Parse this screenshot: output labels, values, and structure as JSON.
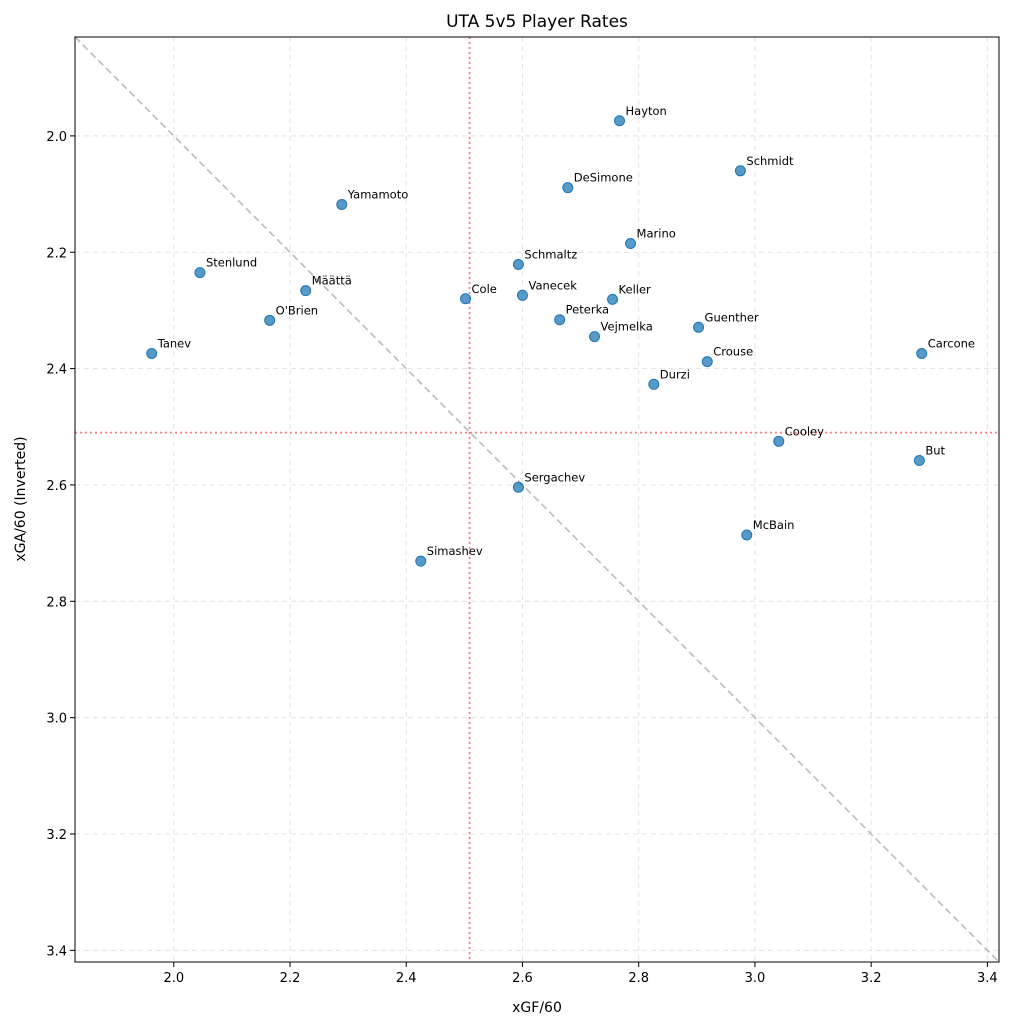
{
  "chart_data": {
    "type": "scatter",
    "title": "UTA 5v5 Player Rates",
    "xlabel": "xGF/60",
    "ylabel": "xGA/60 (Inverted)",
    "xlim": [
      1.83,
      3.42
    ],
    "ylim": [
      3.42,
      1.83
    ],
    "y_inverted": true,
    "grid": true,
    "xticks": [
      "2.0",
      "2.2",
      "2.4",
      "2.6",
      "2.8",
      "3.0",
      "3.2",
      "3.4"
    ],
    "yticks": [
      "2.0",
      "2.2",
      "2.4",
      "2.6",
      "2.8",
      "3.0",
      "3.2",
      "3.4"
    ],
    "point_color": "#1f77b4",
    "reference_lines": {
      "mean_x": 2.509,
      "mean_y": 2.51,
      "mean_color": "#f08080",
      "diagonal": "y = x",
      "diagonal_color": "#bbbbbb"
    },
    "points": [
      {
        "label": "Hayton",
        "x": 2.767,
        "y": 1.974
      },
      {
        "label": "Schmidt",
        "x": 2.975,
        "y": 2.06
      },
      {
        "label": "DeSimone",
        "x": 2.678,
        "y": 2.089
      },
      {
        "label": "Yamamoto",
        "x": 2.289,
        "y": 2.118
      },
      {
        "label": "Marino",
        "x": 2.786,
        "y": 2.185
      },
      {
        "label": "Stenlund",
        "x": 2.045,
        "y": 2.235
      },
      {
        "label": "Schmaltz",
        "x": 2.593,
        "y": 2.221
      },
      {
        "label": "Määttä",
        "x": 2.227,
        "y": 2.266
      },
      {
        "label": "Cole",
        "x": 2.502,
        "y": 2.28
      },
      {
        "label": "Vanecek",
        "x": 2.6,
        "y": 2.274
      },
      {
        "label": "Keller",
        "x": 2.755,
        "y": 2.281
      },
      {
        "label": "O'Brien",
        "x": 2.165,
        "y": 2.317
      },
      {
        "label": "Peterka",
        "x": 2.664,
        "y": 2.316
      },
      {
        "label": "Guenther",
        "x": 2.903,
        "y": 2.329
      },
      {
        "label": "Vejmelka",
        "x": 2.724,
        "y": 2.345
      },
      {
        "label": "Tanev",
        "x": 1.962,
        "y": 2.374
      },
      {
        "label": "Carcone",
        "x": 3.287,
        "y": 2.374
      },
      {
        "label": "Crouse",
        "x": 2.918,
        "y": 2.388
      },
      {
        "label": "Durzi",
        "x": 2.826,
        "y": 2.427
      },
      {
        "label": "Cooley",
        "x": 3.041,
        "y": 2.525
      },
      {
        "label": "But",
        "x": 3.283,
        "y": 2.558
      },
      {
        "label": "Sergachev",
        "x": 2.593,
        "y": 2.604
      },
      {
        "label": "McBain",
        "x": 2.986,
        "y": 2.686
      },
      {
        "label": "Simashev",
        "x": 2.425,
        "y": 2.731
      }
    ]
  }
}
